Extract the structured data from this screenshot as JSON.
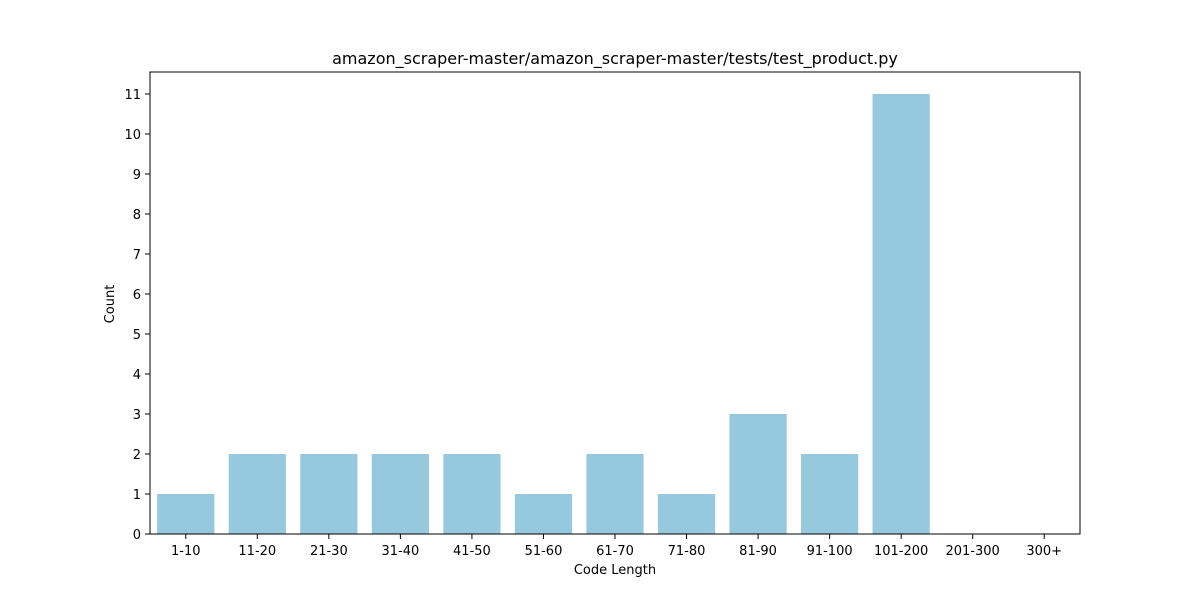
{
  "chart_data": {
    "type": "bar",
    "title": "amazon_scraper-master/amazon_scraper-master/tests/test_product.py",
    "xlabel": "Code Length",
    "ylabel": "Count",
    "categories": [
      "1-10",
      "11-20",
      "21-30",
      "31-40",
      "41-50",
      "51-60",
      "61-70",
      "71-80",
      "81-90",
      "91-100",
      "101-200",
      "201-300",
      "300+"
    ],
    "values": [
      1,
      2,
      2,
      2,
      2,
      1,
      2,
      1,
      3,
      2,
      11,
      0,
      0
    ],
    "yticks": [
      0,
      1,
      2,
      3,
      4,
      5,
      6,
      7,
      8,
      9,
      10,
      11
    ],
    "ylim": [
      0,
      11.55
    ],
    "bar_color": "#96c9de",
    "grid": false,
    "legend": "none"
  }
}
